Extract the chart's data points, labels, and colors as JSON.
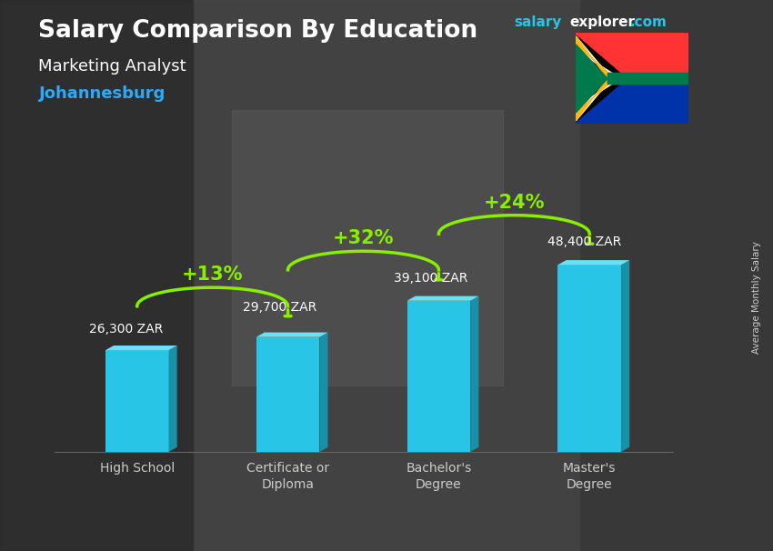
{
  "title": "Salary Comparison By Education",
  "subtitle": "Marketing Analyst",
  "city": "Johannesburg",
  "ylabel": "Average Monthly Salary",
  "categories": [
    "High School",
    "Certificate or\nDiploma",
    "Bachelor's\nDegree",
    "Master's\nDegree"
  ],
  "values": [
    26300,
    29700,
    39100,
    48400
  ],
  "labels": [
    "26,300 ZAR",
    "29,700 ZAR",
    "39,100 ZAR",
    "48,400 ZAR"
  ],
  "pct_labels": [
    "+13%",
    "+32%",
    "+24%"
  ],
  "bar_color_face": "#29c5e6",
  "bar_color_top": "#6ee0f5",
  "bar_color_side": "#1a8fa8",
  "bg_color": "#3a3a3a",
  "title_color": "#ffffff",
  "subtitle_color": "#ffffff",
  "city_color": "#29aaff",
  "label_color": "#ffffff",
  "pct_color": "#88ee00",
  "arrow_color": "#88ee00",
  "axis_label_color": "#cccccc",
  "watermark_salary_color": "#29c5e6",
  "watermark_explorer_color": "#ffffff",
  "watermark_dot_com_color": "#29c5e6"
}
